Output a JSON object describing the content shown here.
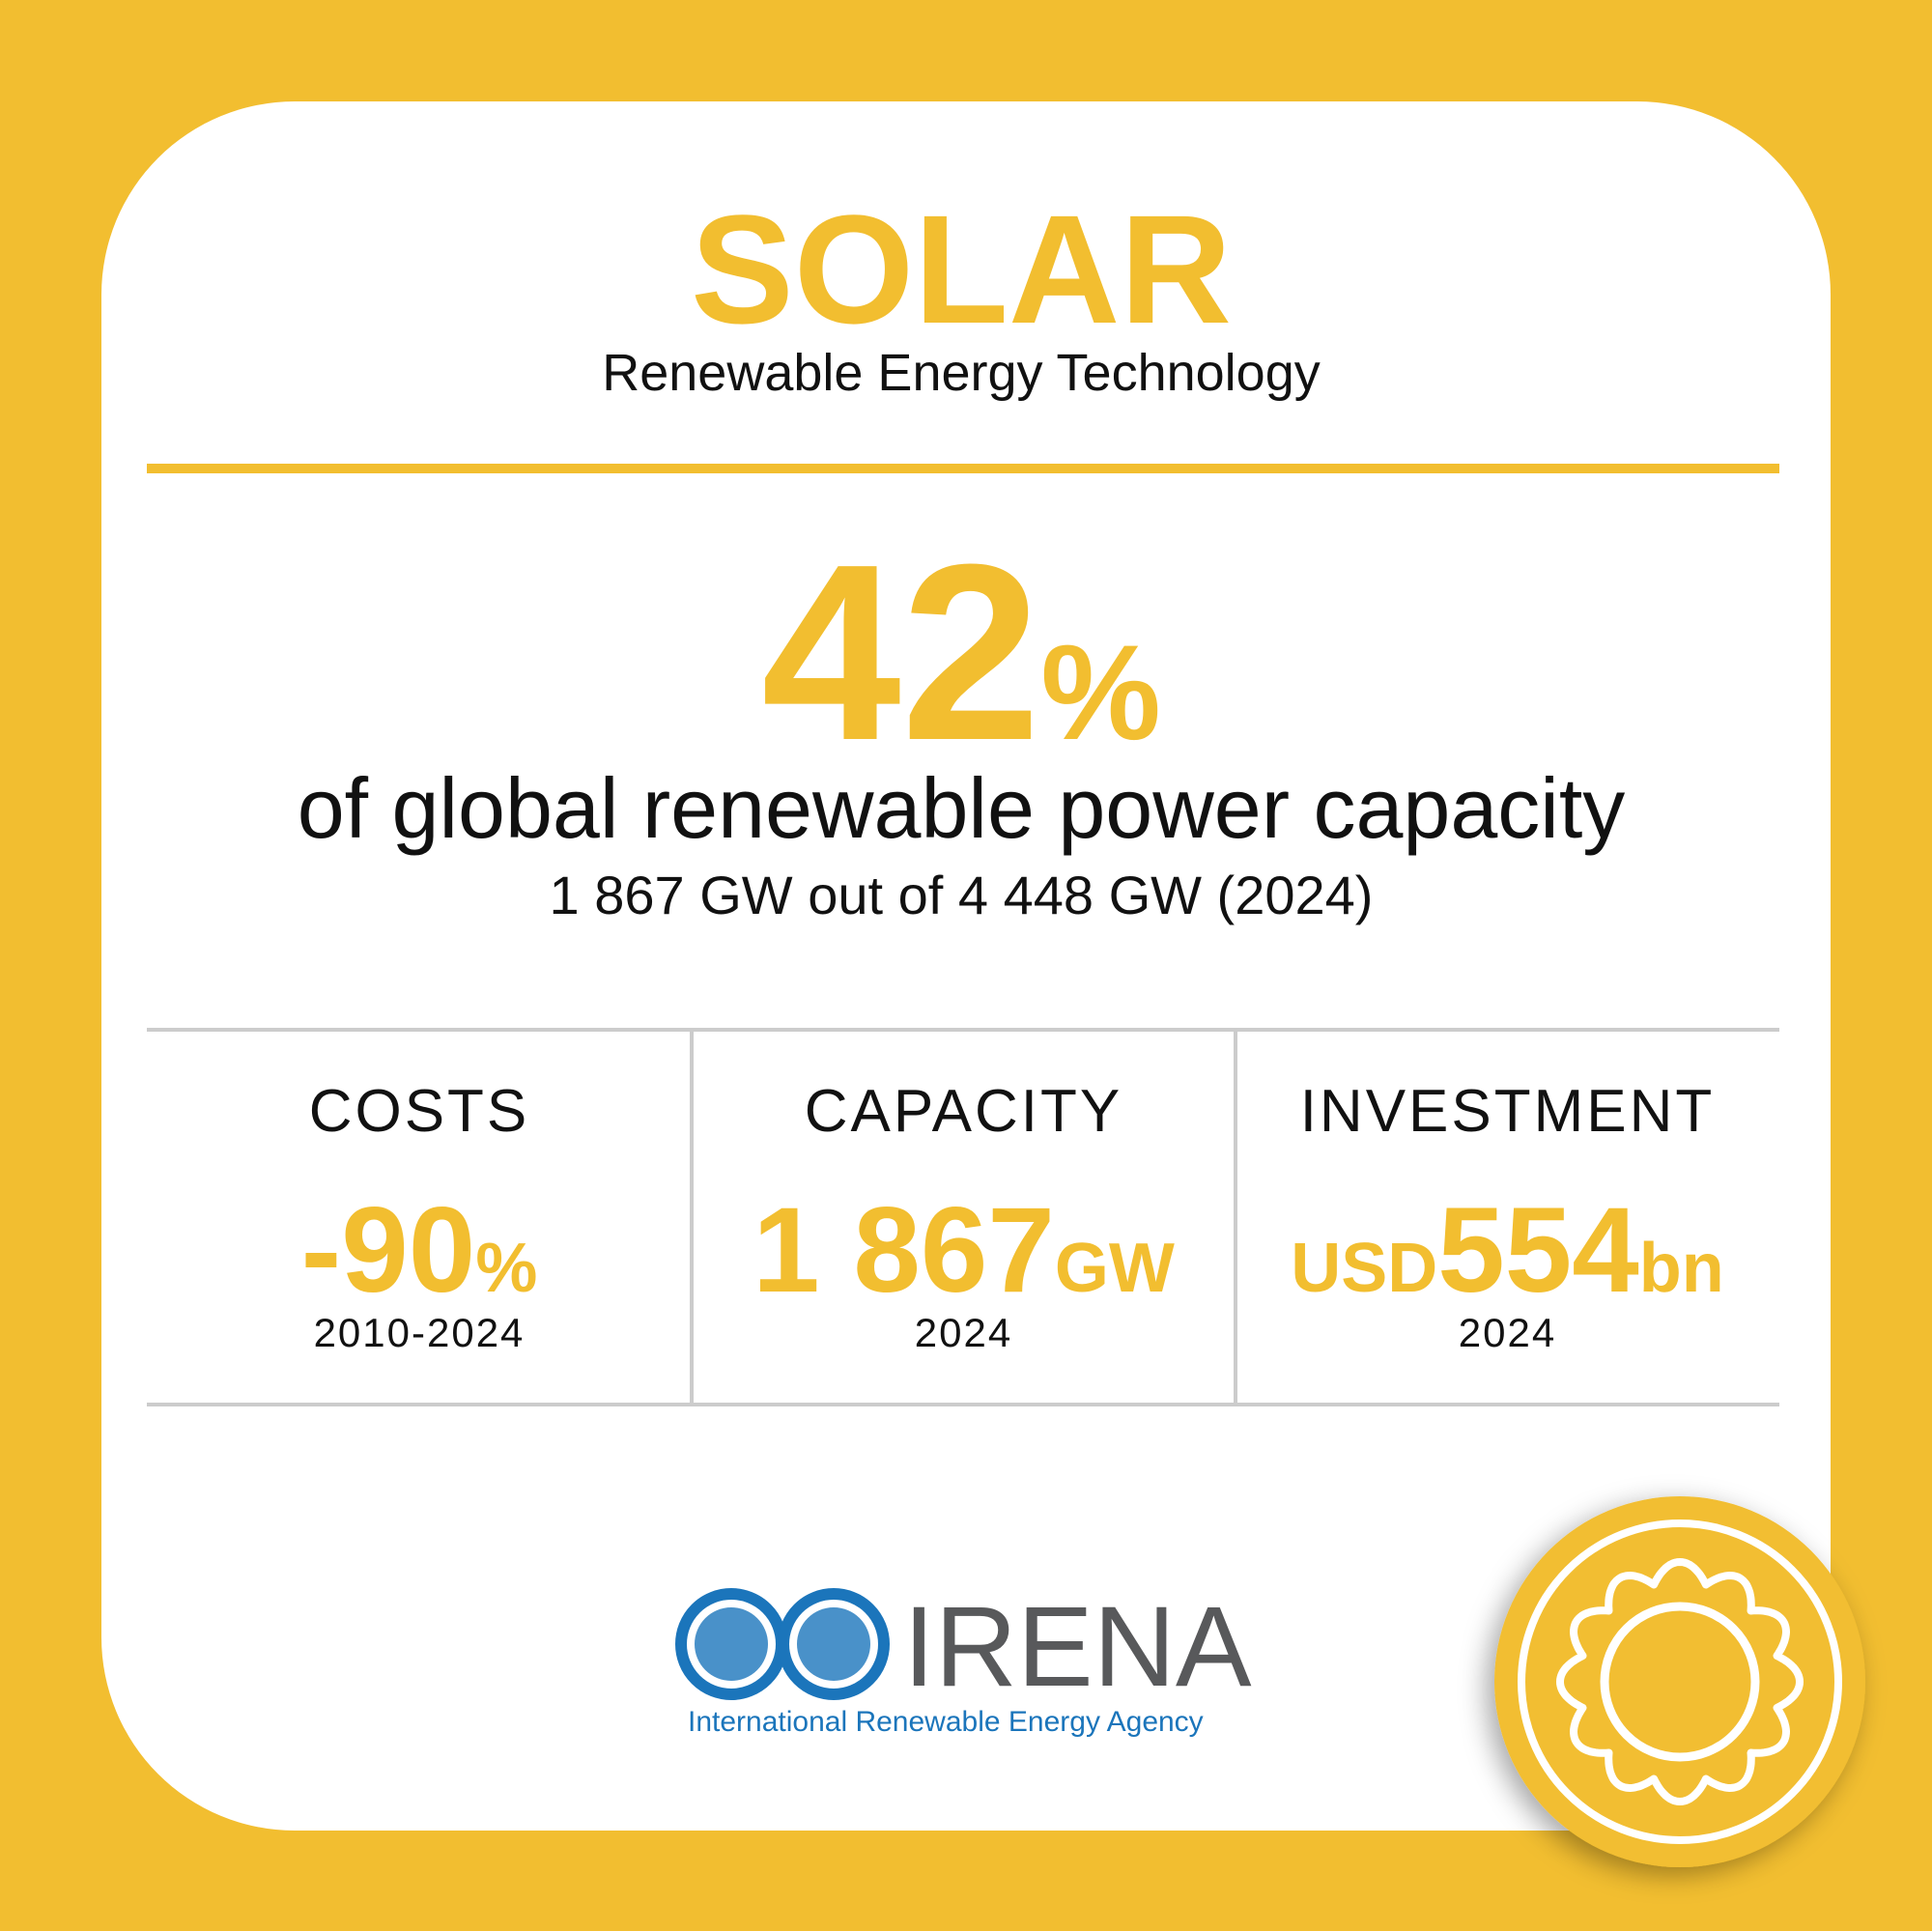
{
  "header": {
    "title": "SOLAR",
    "subtitle": "Renewable Energy Technology"
  },
  "headline": {
    "value": "42",
    "unit": "%",
    "text": "of global renewable power capacity",
    "detail": "1 867 GW out of 4 448 GW (2024)"
  },
  "stats": [
    {
      "label": "COSTS",
      "value": "-90",
      "unit": "%",
      "period": "2010-2024"
    },
    {
      "label": "CAPACITY",
      "value": "1 867",
      "unit": "GW",
      "period": "2024"
    },
    {
      "label": "INVESTMENT",
      "prefix": "USD",
      "value": "554",
      "unit": "bn",
      "period": "2024"
    }
  ],
  "logo": {
    "name": "IRENA",
    "tagline": "International Renewable Energy Agency"
  }
}
